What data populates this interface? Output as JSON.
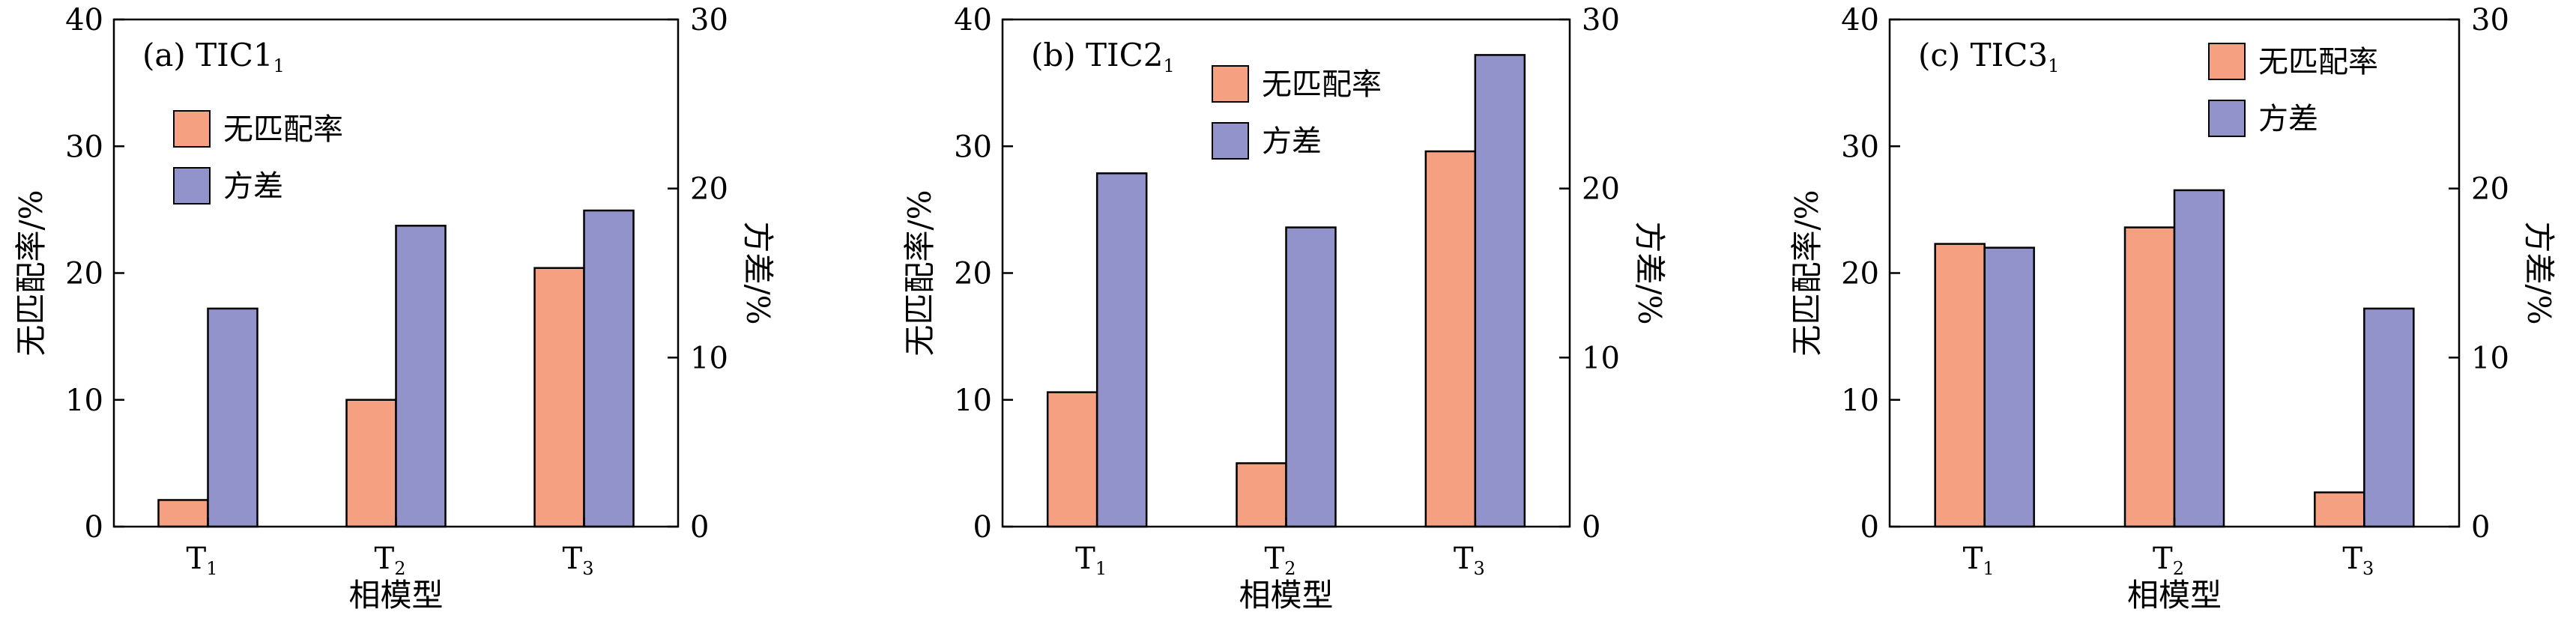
{
  "chart_data": [
    {
      "type": "bar",
      "title": "(a) TIC1",
      "title_sub": "1",
      "categories": [
        "T",
        "T",
        "T"
      ],
      "category_subs": [
        "1",
        "2",
        "3"
      ],
      "xlabel": "相模型",
      "ylabel_left": "无匹配率/%",
      "ylabel_right": "方差/%",
      "ylim_left": [
        0,
        40
      ],
      "ylim_right": [
        0,
        30
      ],
      "yticks_left": [
        "0",
        "10",
        "20",
        "30",
        "40"
      ],
      "yticks_right": [
        "0",
        "10",
        "20",
        "30"
      ],
      "series": [
        {
          "name": "无匹配率",
          "axis": "left",
          "color": "#f4a081",
          "values": [
            2.1,
            10.0,
            20.4
          ]
        },
        {
          "name": "方差",
          "axis": "right",
          "color": "#9393cc",
          "values": [
            12.9,
            17.8,
            18.7
          ]
        }
      ],
      "legend": "upper-left"
    },
    {
      "type": "bar",
      "title": "(b) TIC2",
      "title_sub": "1",
      "categories": [
        "T",
        "T",
        "T"
      ],
      "category_subs": [
        "1",
        "2",
        "3"
      ],
      "xlabel": "相模型",
      "ylabel_left": "无匹配率/%",
      "ylabel_right": "方差/%",
      "ylim_left": [
        0,
        40
      ],
      "ylim_right": [
        0,
        30
      ],
      "yticks_left": [
        "0",
        "10",
        "20",
        "30",
        "40"
      ],
      "yticks_right": [
        "0",
        "10",
        "20",
        "30"
      ],
      "series": [
        {
          "name": "无匹配率",
          "axis": "left",
          "color": "#f4a081",
          "values": [
            10.6,
            5.0,
            29.6
          ]
        },
        {
          "name": "方差",
          "axis": "right",
          "color": "#9393cc",
          "values": [
            20.9,
            17.7,
            27.9
          ]
        }
      ],
      "legend": "upper-center"
    },
    {
      "type": "bar",
      "title": "(c) TIC3",
      "title_sub": "1",
      "categories": [
        "T",
        "T",
        "T"
      ],
      "category_subs": [
        "1",
        "2",
        "3"
      ],
      "xlabel": "相模型",
      "ylabel_left": "无匹配率/%",
      "ylabel_right": "方差/%",
      "ylim_left": [
        0,
        40
      ],
      "ylim_right": [
        0,
        30
      ],
      "yticks_left": [
        "0",
        "10",
        "20",
        "30",
        "40"
      ],
      "yticks_right": [
        "0",
        "10",
        "20",
        "30"
      ],
      "series": [
        {
          "name": "无匹配率",
          "axis": "left",
          "color": "#f4a081",
          "values": [
            22.3,
            23.6,
            2.7
          ]
        },
        {
          "name": "方差",
          "axis": "right",
          "color": "#9393cc",
          "values": [
            16.5,
            19.9,
            12.9
          ]
        }
      ],
      "legend": "upper-right"
    }
  ]
}
